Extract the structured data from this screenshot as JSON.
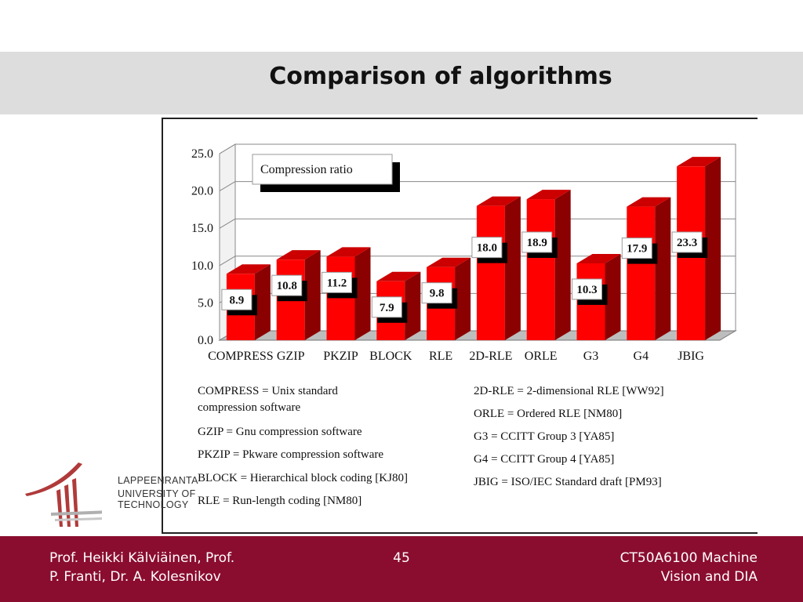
{
  "slide": {
    "title": "Comparison of algorithms",
    "page_number": "45"
  },
  "chart_data": {
    "type": "bar",
    "categories": [
      "COMPRESS",
      "GZIP",
      "PKZIP",
      "BLOCK",
      "RLE",
      "2D-RLE",
      "ORLE",
      "G3",
      "G4",
      "JBIG"
    ],
    "series": [
      {
        "name": "Compression ratio",
        "values": [
          8.9,
          10.8,
          11.2,
          7.9,
          9.8,
          18.0,
          18.9,
          10.3,
          17.9,
          23.3
        ]
      }
    ],
    "data_labels": [
      "8.9",
      "10.8",
      "11.2",
      "7.9",
      "9.8",
      "18.0",
      "18.9",
      "10.3",
      "17.9",
      "23.3"
    ],
    "y_ticks": [
      "0.0",
      "5.0",
      "10.0",
      "15.0",
      "20.0",
      "25.0"
    ],
    "ylim": [
      0,
      25
    ],
    "legend": "Compression ratio",
    "legend_position": "top-left",
    "grid": true,
    "bar_color": "#ff0000",
    "bar_side_color": "#8b0000",
    "bar_top_color": "#cc0000"
  },
  "definitions": {
    "left": [
      "COMPRESS = Unix standard",
      "compression software",
      "GZIP = Gnu compression software",
      "PKZIP = Pkware compression software",
      "BLOCK = Hierarchical block coding [KJ80]",
      "RLE = Run-length coding [NM80]"
    ],
    "right": [
      "2D-RLE = 2-dimensional RLE [WW92]",
      "ORLE = Ordered RLE [NM80]",
      "G3 = CCITT Group 3 [YA85]",
      "G4 = CCITT Group 4 [YA85]",
      "JBIG = ISO/IEC Standard draft [PM93]"
    ]
  },
  "logo": {
    "line1": "LAPPEENRANTA",
    "line2": "UNIVERSITY OF TECHNOLOGY"
  },
  "footer": {
    "left_line1": "Prof. Heikki Kälviäinen,  Prof.",
    "left_line2": "P. Franti, Dr. A. Kolesnikov",
    "right_line1": "CT50A6100 Machine",
    "right_line2": "Vision and DIA"
  }
}
